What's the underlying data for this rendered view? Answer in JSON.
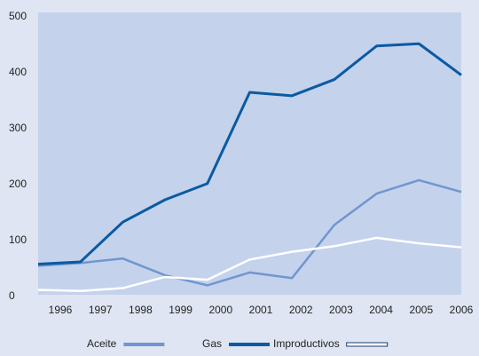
{
  "chart_data": {
    "type": "line",
    "categories": [
      "1996",
      "1997",
      "1998",
      "1999",
      "2000",
      "2001",
      "2002",
      "2003",
      "2004",
      "2005",
      "2006"
    ],
    "series": [
      {
        "name": "Aceite",
        "color": "#7196cf",
        "values": [
          55,
          60,
          68,
          38,
          20,
          43,
          33,
          128,
          184,
          208,
          187
        ]
      },
      {
        "name": "Gas",
        "color": "#0b5aa2",
        "values": [
          58,
          62,
          133,
          173,
          202,
          365,
          359,
          388,
          448,
          452,
          396
        ]
      },
      {
        "name": "Improductivos",
        "color": "#ffffff",
        "values": [
          12,
          10,
          15,
          35,
          30,
          66,
          80,
          90,
          105,
          95,
          88
        ]
      }
    ],
    "ylim": [
      0,
      500
    ],
    "yticks": [
      0,
      100,
      200,
      300,
      400,
      500
    ]
  }
}
